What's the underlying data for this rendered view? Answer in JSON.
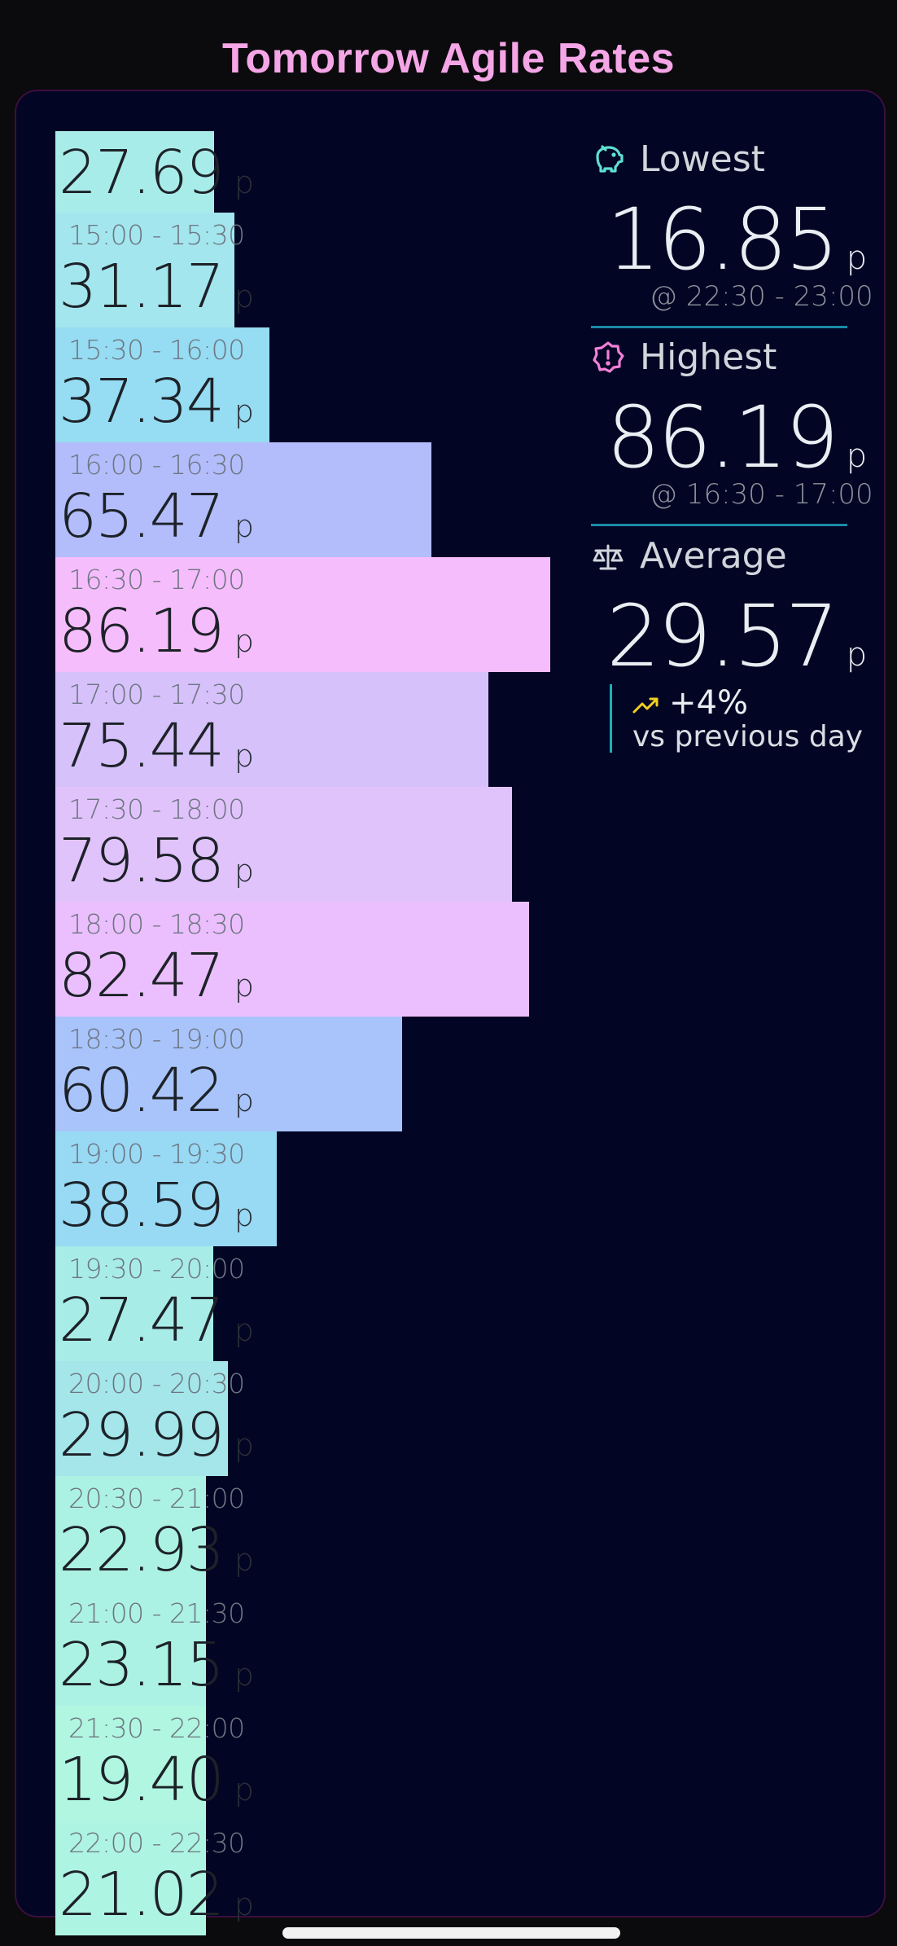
{
  "title": "Tomorrow Agile Rates",
  "unit": "p",
  "bars": [
    {
      "time": "",
      "price": "27.69",
      "color": "#a8ecea"
    },
    {
      "time": "15:00 - 15:30",
      "price": "31.17",
      "color": "#a3e6ee"
    },
    {
      "time": "15:30 - 16:00",
      "price": "37.34",
      "color": "#96dcf2"
    },
    {
      "time": "16:00 - 16:30",
      "price": "65.47",
      "color": "#b3bdfb"
    },
    {
      "time": "16:30 - 17:00",
      "price": "86.19",
      "color": "#f6bdfd"
    },
    {
      "time": "17:00 - 17:30",
      "price": "75.44",
      "color": "#d6c1fb"
    },
    {
      "time": "17:30 - 18:00",
      "price": "79.58",
      "color": "#e1c3fc"
    },
    {
      "time": "18:00 - 18:30",
      "price": "82.47",
      "color": "#ebbffd"
    },
    {
      "time": "18:30 - 19:00",
      "price": "60.42",
      "color": "#a8c4fb"
    },
    {
      "time": "19:00 - 19:30",
      "price": "38.59",
      "color": "#98d9f4"
    },
    {
      "time": "19:30 - 20:00",
      "price": "27.47",
      "color": "#a8ece8"
    },
    {
      "time": "20:00 - 20:30",
      "price": "29.99",
      "color": "#a4e6ea"
    },
    {
      "time": "20:30 - 21:00",
      "price": "22.93",
      "color": "#acf2e4"
    },
    {
      "time": "21:00 - 21:30",
      "price": "23.15",
      "color": "#acf2e4"
    },
    {
      "time": "21:30 - 22:00",
      "price": "19.40",
      "color": "#b0f6e0"
    },
    {
      "time": "22:00 - 22:30",
      "price": "21.02",
      "color": "#aef4e2"
    }
  ],
  "lowest": {
    "label": "Lowest",
    "value": "16.85",
    "time": "@ 22:30 - 23:00"
  },
  "highest": {
    "label": "Highest",
    "value": "86.19",
    "time": "@ 16:30 - 17:00"
  },
  "average": {
    "label": "Average",
    "value": "29.57"
  },
  "trend": {
    "percent": "+4%",
    "text": "vs previous day"
  },
  "colors": {
    "accent": "#1b8aa6",
    "title": "#f4a6e6",
    "icon": "#5fe0d0",
    "highest_icon": "#f080d8",
    "trend_icon": "#f0d020"
  }
}
